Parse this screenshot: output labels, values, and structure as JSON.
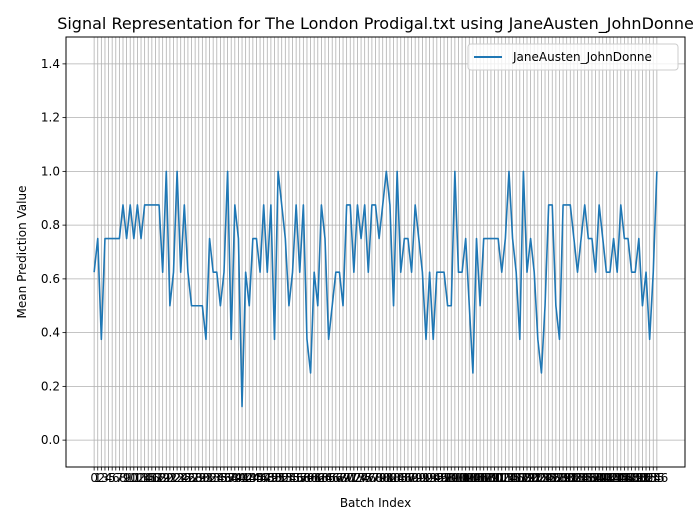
{
  "chart_data": {
    "type": "line",
    "title": "Signal Representation for The London Prodigal.txt using JaneAusten_JohnDonne",
    "xlabel": "Batch Index",
    "ylabel": "Mean Prediction Value",
    "ylim": [
      -0.1,
      1.5
    ],
    "yticks": [
      "0.0",
      "0.2",
      "0.4",
      "0.6",
      "0.8",
      "1.0",
      "1.2",
      "1.4"
    ],
    "grid": true,
    "legend_position": "top-right",
    "series": [
      {
        "name": "JaneAusten_JohnDonne",
        "color": "#1f77b4",
        "values": [
          0.625,
          0.75,
          0.375,
          0.75,
          0.75,
          0.75,
          0.75,
          0.75,
          0.875,
          0.75,
          0.875,
          0.75,
          0.875,
          0.75,
          0.875,
          0.875,
          0.875,
          0.875,
          0.875,
          0.625,
          1.0,
          0.5,
          0.625,
          1.0,
          0.625,
          0.875,
          0.625,
          0.5,
          0.5,
          0.5,
          0.5,
          0.375,
          0.75,
          0.625,
          0.625,
          0.5,
          0.625,
          1.0,
          0.375,
          0.875,
          0.75,
          0.125,
          0.625,
          0.5,
          0.75,
          0.75,
          0.625,
          0.875,
          0.625,
          0.875,
          0.375,
          1.0,
          0.875,
          0.75,
          0.5,
          0.625,
          0.875,
          0.625,
          0.875,
          0.375,
          0.25,
          0.625,
          0.5,
          0.875,
          0.75,
          0.375,
          0.5,
          0.625,
          0.625,
          0.5,
          0.875,
          0.875,
          0.625,
          0.875,
          0.75,
          0.875,
          0.625,
          0.875,
          0.875,
          0.75,
          0.875,
          1.0,
          0.875,
          0.5,
          1.0,
          0.625,
          0.75,
          0.75,
          0.625,
          0.875,
          0.75,
          0.625,
          0.375,
          0.625,
          0.375,
          0.625,
          0.625,
          0.625,
          0.5,
          0.5,
          1.0,
          0.625,
          0.625,
          0.75,
          0.5,
          0.25,
          0.75,
          0.5,
          0.75,
          0.75,
          0.75,
          0.75,
          0.75,
          0.625,
          0.75,
          1.0,
          0.75,
          0.625,
          0.375,
          1.0,
          0.625,
          0.75,
          0.625,
          0.375,
          0.25,
          0.5,
          0.875,
          0.875,
          0.5,
          0.375,
          0.875,
          0.875,
          0.875,
          0.75,
          0.625,
          0.75,
          0.875,
          0.75,
          0.75,
          0.625,
          0.875,
          0.75,
          0.625,
          0.625,
          0.75,
          0.625,
          0.875,
          0.75,
          0.75,
          0.625,
          0.625,
          0.75,
          0.5,
          0.625,
          0.375,
          0.625,
          1.0
        ]
      }
    ]
  }
}
